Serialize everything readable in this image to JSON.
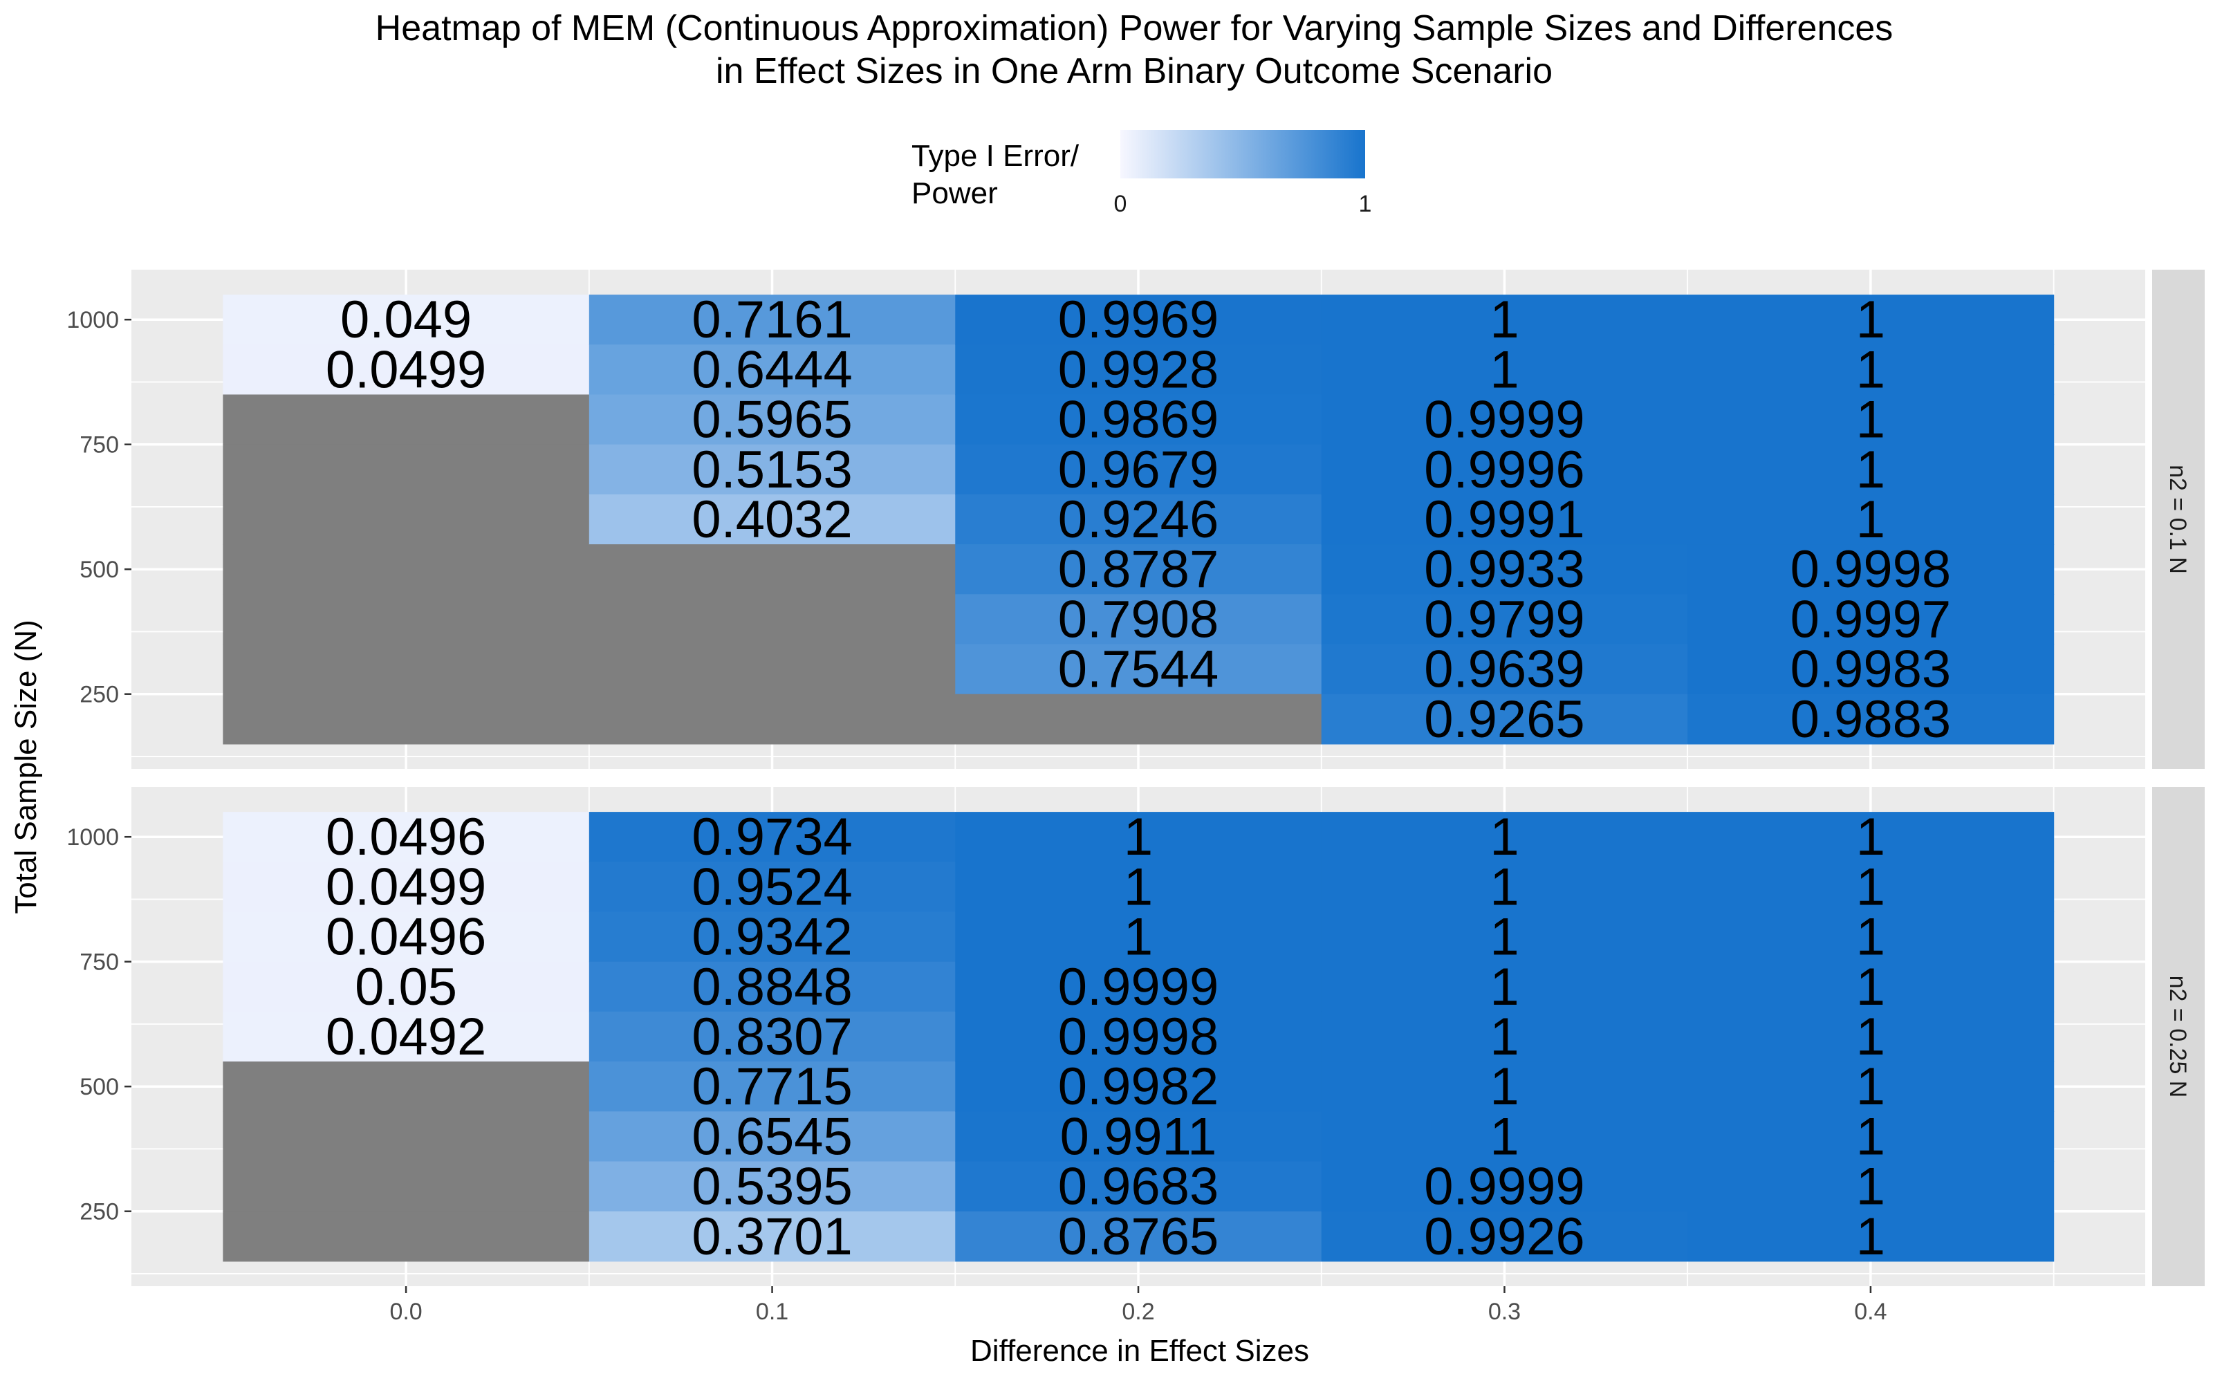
{
  "chart_data": {
    "type": "heatmap",
    "title": "Heatmap of MEM (Continuous Approximation) Power for Varying Sample Sizes and Differences\nin Effect Sizes in One Arm Binary Outcome Scenario",
    "xlabel": "Difference in Effect Sizes",
    "ylabel": "Total Sample Size (N)",
    "x_ticks": [
      "0.0",
      "0.1",
      "0.2",
      "0.3",
      "0.4"
    ],
    "y_ticks": [
      "250",
      "500",
      "750",
      "1000"
    ],
    "x_categories": [
      0.0,
      0.1,
      0.2,
      0.3,
      0.4
    ],
    "y_categories": [
      1000,
      900,
      800,
      700,
      600,
      500,
      400,
      300,
      200
    ],
    "xlim": [
      -0.075,
      0.475
    ],
    "ylim": [
      100,
      1100
    ],
    "legend": {
      "title": "Type I Error/\nPower",
      "low_label": "0",
      "high_label": "1",
      "low_color": "#f7f7ff",
      "high_color": "#1874cd",
      "position": "top"
    },
    "missing_color": "#7f7f7f",
    "panel_background": "#ebebeb",
    "strip_background": "#d9d9d9",
    "panels": [
      {
        "strip_label": "n2 = 0.1 N",
        "values": [
          [
            0.049,
            0.0499,
            null,
            null,
            null,
            null,
            null,
            null,
            null
          ],
          [
            0.7161,
            0.6444,
            0.5965,
            0.5153,
            0.4032,
            null,
            null,
            null,
            null
          ],
          [
            0.9969,
            0.9928,
            0.9869,
            0.9679,
            0.9246,
            0.8787,
            0.7908,
            0.7544,
            null
          ],
          [
            1,
            1,
            0.9999,
            0.9996,
            0.9991,
            0.9933,
            0.9799,
            0.9639,
            0.9265
          ],
          [
            1,
            1,
            1,
            1,
            1,
            0.9998,
            0.9997,
            0.9983,
            0.9883
          ]
        ]
      },
      {
        "strip_label": "n2 = 0.25 N",
        "values": [
          [
            0.0496,
            0.0499,
            0.0496,
            0.05,
            0.0492,
            null,
            null,
            null,
            null
          ],
          [
            0.9734,
            0.9524,
            0.9342,
            0.8848,
            0.8307,
            0.7715,
            0.6545,
            0.5395,
            0.3701
          ],
          [
            1,
            1,
            1,
            0.9999,
            0.9998,
            0.9982,
            0.9911,
            0.9683,
            0.8765
          ],
          [
            1,
            1,
            1,
            1,
            1,
            1,
            1,
            0.9999,
            0.9926
          ],
          [
            1,
            1,
            1,
            1,
            1,
            1,
            1,
            1,
            1
          ]
        ]
      }
    ]
  }
}
